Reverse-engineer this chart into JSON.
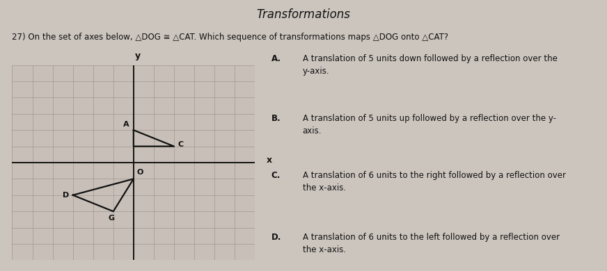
{
  "title": "Transformations",
  "question": "27) On the set of axes below, △DOG ≅ △CAT. Which sequence of transformations maps △DOG onto △CAT?",
  "bg_color": "#ccc5be",
  "grid_bg_color": "#c8c0b8",
  "grid_color": "#a09890",
  "axis_color": "#111111",
  "triangle_color": "#111111",
  "CAT": {
    "A": [
      0,
      2
    ],
    "C": [
      2,
      1
    ],
    "T": [
      0,
      1
    ]
  },
  "DOG": {
    "D": [
      -3,
      -2
    ],
    "O": [
      0,
      -1
    ],
    "G": [
      -1,
      -3
    ]
  },
  "xlim": [
    -6,
    6
  ],
  "ylim": [
    -6,
    6
  ],
  "options_A": "A translation of 5 units down followed by a reflection over the\ny-axis.",
  "options_B": "A translation of 5 units up followed by a reflection over the y-\naxis.",
  "options_C": "A translation of 6 units to the right followed by a reflection over\nthe x-axis.",
  "options_D": "A translation of 6 units to the left followed by a reflection over\nthe x-axis.",
  "label_fontsize": 8,
  "option_fontsize": 8.5,
  "title_fontsize": 12,
  "question_fontsize": 8.5
}
